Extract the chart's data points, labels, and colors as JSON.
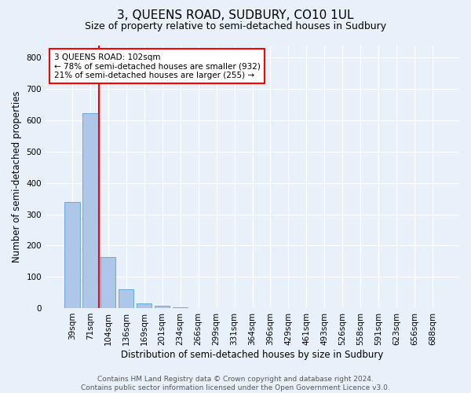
{
  "title": "3, QUEENS ROAD, SUDBURY, CO10 1UL",
  "subtitle": "Size of property relative to semi-detached houses in Sudbury",
  "xlabel": "Distribution of semi-detached houses by size in Sudbury",
  "ylabel": "Number of semi-detached properties",
  "footer_line1": "Contains HM Land Registry data © Crown copyright and database right 2024.",
  "footer_line2": "Contains public sector information licensed under the Open Government Licence v3.0.",
  "categories": [
    "39sqm",
    "71sqm",
    "104sqm",
    "136sqm",
    "169sqm",
    "201sqm",
    "234sqm",
    "266sqm",
    "299sqm",
    "331sqm",
    "364sqm",
    "396sqm",
    "429sqm",
    "461sqm",
    "493sqm",
    "526sqm",
    "558sqm",
    "591sqm",
    "623sqm",
    "656sqm",
    "688sqm"
  ],
  "values": [
    338,
    622,
    163,
    60,
    16,
    8,
    2,
    0,
    0,
    0,
    0,
    0,
    0,
    0,
    0,
    0,
    0,
    0,
    0,
    0,
    0
  ],
  "bar_color": "#aec6e8",
  "bar_edge_color": "#5a9fd4",
  "vline_color": "red",
  "annotation_text": "3 QUEENS ROAD: 102sqm\n← 78% of semi-detached houses are smaller (932)\n21% of semi-detached houses are larger (255) →",
  "annotation_box_color": "white",
  "annotation_box_edge_color": "red",
  "ylim": [
    0,
    840
  ],
  "yticks": [
    0,
    100,
    200,
    300,
    400,
    500,
    600,
    700,
    800
  ],
  "background_color": "#e8f0fa",
  "grid_color": "white",
  "title_fontsize": 11,
  "subtitle_fontsize": 9,
  "axis_label_fontsize": 8.5,
  "tick_fontsize": 7.5,
  "footer_fontsize": 6.5
}
